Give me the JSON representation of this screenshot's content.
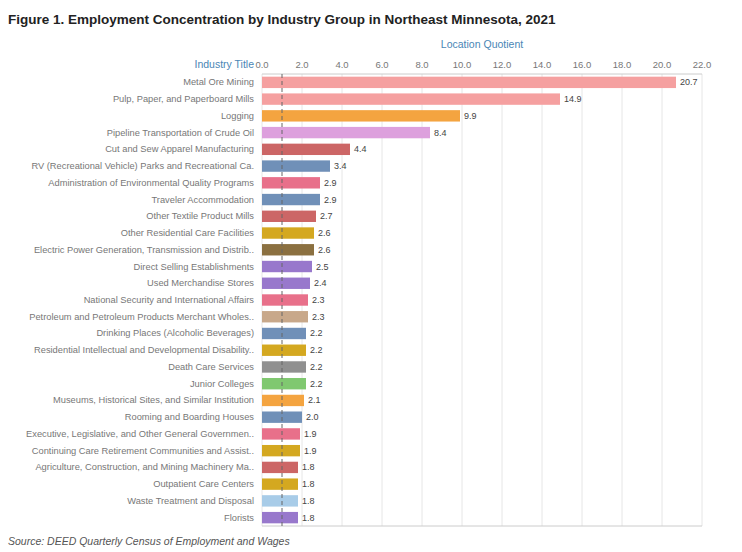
{
  "chart_data": {
    "type": "bar",
    "orientation": "horizontal",
    "title": "Figure 1. Employment Concentration by Industry Group in Northeast Minnesota, 2021",
    "source": "Source: DEED Quarterly Census of Employment and Wages",
    "x_label": "Location Quotient",
    "y_label": "Industry Title",
    "categories": [
      "Metal Ore Mining",
      "Pulp, Paper, and Paperboard Mills",
      "Logging",
      "Pipeline Transportation of Crude Oil",
      "Cut and Sew Apparel Manufacturing",
      "RV (Recreational Vehicle) Parks and Recreational Ca.",
      "Administration of Environmental Quality Programs",
      "Traveler Accommodation",
      "Other Textile Product Mills",
      "Other Residential Care Facilities",
      "Electric Power Generation, Transmission and Distrib..",
      "Direct Selling Establishments",
      "Used Merchandise Stores",
      "National Security and International Affairs",
      "Petroleum and Petroleum Products Merchant Wholes..",
      "Drinking Places (Alcoholic Beverages)",
      "Residential Intellectual and Developmental Disability..",
      "Death Care Services",
      "Junior Colleges",
      "Museums, Historical Sites, and Similar Institution",
      "Rooming and Boarding Houses",
      "Executive, Legislative, and Other General Governmen..",
      "Continuing Care Retirement Communities and Assist..",
      "Agriculture, Construction, and Mining Machinery Ma..",
      "Outpatient Care Centers",
      "Waste Treatment and Disposal",
      "Florists"
    ],
    "values": [
      20.7,
      14.9,
      9.9,
      8.4,
      4.4,
      3.4,
      2.9,
      2.9,
      2.7,
      2.6,
      2.6,
      2.5,
      2.4,
      2.3,
      2.3,
      2.2,
      2.2,
      2.2,
      2.2,
      2.1,
      2.0,
      1.9,
      1.9,
      1.8,
      1.8,
      1.8,
      1.8
    ],
    "value_labels": [
      "20.7",
      "14.9",
      "9.9",
      "8.4",
      "4.4",
      "3.4",
      "2.9",
      "2.9",
      "2.7",
      "2.6",
      "2.6",
      "2.5",
      "2.4",
      "2.3",
      "2.3",
      "2.2",
      "2.2",
      "2.2",
      "2.2",
      "2.1",
      "2.0",
      "1.9",
      "1.9",
      "1.8",
      "1.8",
      "1.8",
      "1.8"
    ],
    "colors": [
      "#F5A0A0",
      "#F5A0A0",
      "#F4A440",
      "#DDA0DD",
      "#CC6666",
      "#7090B8",
      "#E8708A",
      "#7090B8",
      "#CC6666",
      "#D4A820",
      "#8B7040",
      "#9878CC",
      "#9878CC",
      "#E8708A",
      "#C8A88A",
      "#7090B8",
      "#D4A820",
      "#909090",
      "#80C870",
      "#F4A440",
      "#7090B8",
      "#E8708A",
      "#D4A820",
      "#CC6666",
      "#D4A820",
      "#A8CCE8",
      "#9878CC"
    ],
    "data_labels": true,
    "grid": true,
    "reference_x": 1.0,
    "xlim": [
      0.0,
      22.0
    ],
    "xticks": [
      {
        "value": 0,
        "label": "0.0"
      },
      {
        "value": 2,
        "label": "2.0"
      },
      {
        "value": 4,
        "label": "4.0"
      },
      {
        "value": 6,
        "label": "6.0"
      },
      {
        "value": 8,
        "label": "8.0"
      },
      {
        "value": 10,
        "label": "10.0"
      },
      {
        "value": 12,
        "label": "12.0"
      },
      {
        "value": 14,
        "label": "14.0"
      },
      {
        "value": 16,
        "label": "16.0"
      },
      {
        "value": 18,
        "label": "18.0"
      },
      {
        "value": 20,
        "label": "20.0"
      },
      {
        "value": 22,
        "label": "22.0"
      }
    ]
  }
}
